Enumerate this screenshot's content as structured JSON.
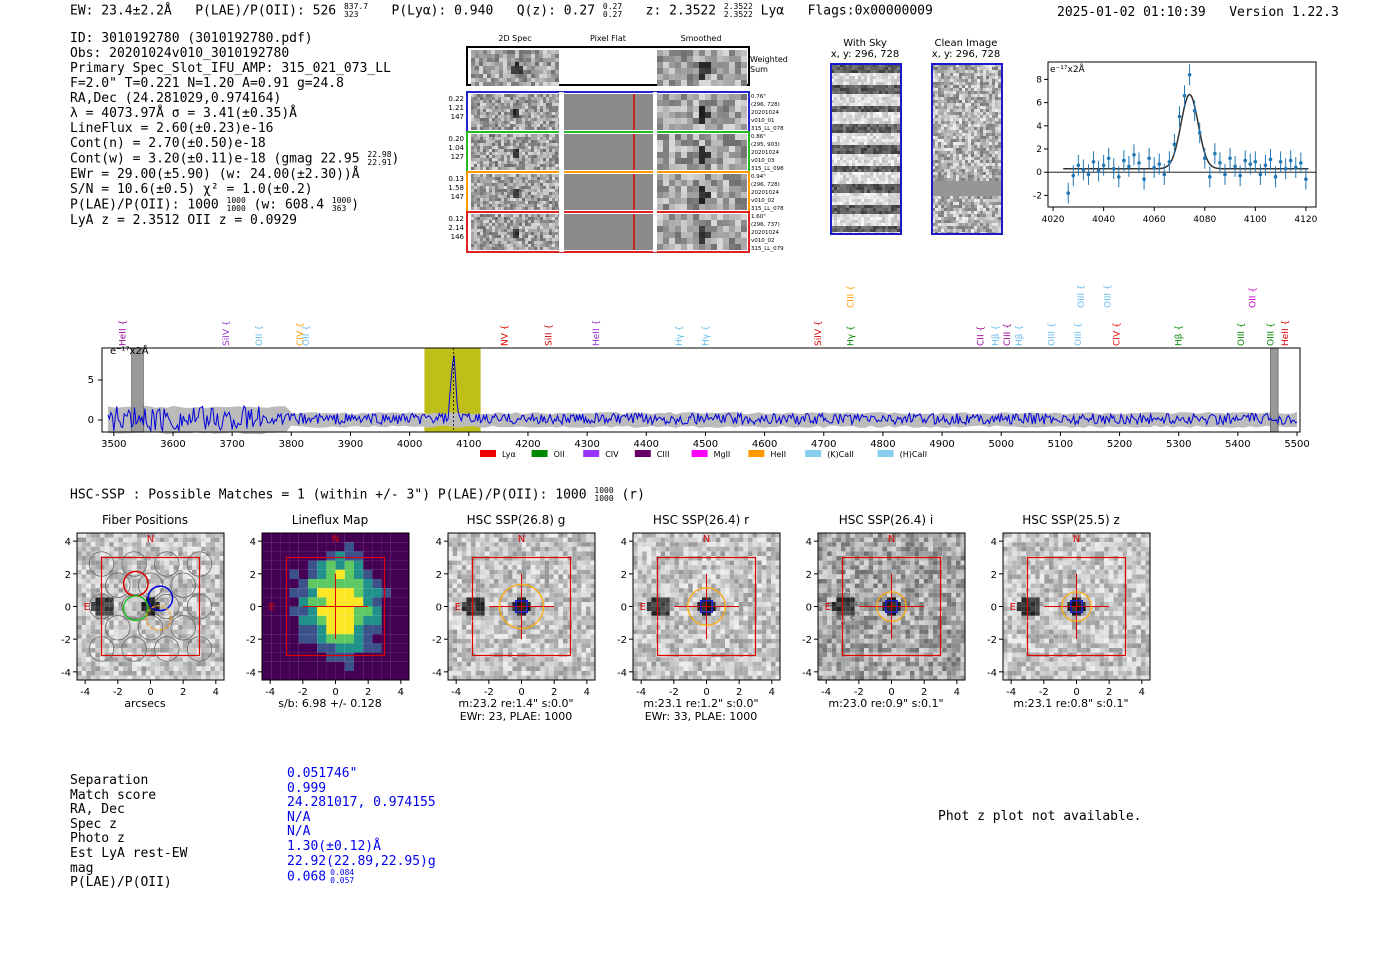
{
  "header": {
    "ew": "EW: 23.4±2.2Å",
    "plae": "P(LAE)/P(OII): 526",
    "plae_hi": "837.7",
    "plae_lo": "323",
    "plya": "P(Lyα): 0.940",
    "qz": "Q(z): 0.27",
    "qz_hi": "0.27",
    "qz_lo": "0.27",
    "z": "z: 2.3522",
    "z_hi": "2.3522",
    "z_lo": "2.3522",
    "line": "Lyα",
    "flags": "Flags:0x00000009",
    "datetime": "2025-01-02 01:10:39",
    "version": "Version 1.22.3"
  },
  "info": {
    "id": "ID: 3010192780 (3010192780.pdf)",
    "obs": "Obs: 20201024v010_3010192780",
    "primary": "Primary Spec_Slot_IFU_AMP: 315_021_073_LL",
    "fparams": "F=2.0\"  T=0.221  N=1.20  A=0.91  g=24.8",
    "radec": "RA,Dec (24.281029,0.974164)",
    "lambda": "λ = 4073.97Å  σ = 3.41(±0.35)Å",
    "lineflux": "LineFlux = 2.60(±0.23)e-16",
    "contn": "Cont(n) = 2.70(±0.50)e-18",
    "contw": "Cont(w) = 3.20(±0.11)e-18 (gmag 22.95",
    "contw_hi": "22.98",
    "contw_lo": "22.91",
    "ewr": "EWr = 29.00(±5.90) (w: 24.00(±2.30))Å",
    "sn": "S/N = 10.6(±0.5)  χ² = 1.0(±0.2)",
    "plae2": "P(LAE)/P(OII): 1000",
    "plae2_hi": "1000",
    "plae2_lo": "1000",
    "plae2_w": "(w: 608.4",
    "plae2_w_hi": "1000",
    "plae2_w_lo": "363",
    "lyaz": "LyA z = 2.3512  OII z = 0.0929"
  },
  "cutouts": {
    "headers": [
      "2D Spec",
      "Pixel Flat",
      "Smoothed"
    ],
    "weighted": "Weighted Sum",
    "rows": [
      {
        "left": [
          "0.22",
          "1.21",
          "147"
        ],
        "right": [
          "0.76\"",
          "(296, 728)",
          "20201024",
          "v010_01",
          "315_LL_078"
        ],
        "color": "#2222cc"
      },
      {
        "left": [
          "0.20",
          "1.04",
          "127"
        ],
        "right": [
          "0.86\"",
          "(295, 903)",
          "20201024",
          "v010_03",
          "315_LL_098"
        ],
        "color": "#22bb22"
      },
      {
        "left": [
          "0.13",
          "1.58",
          "147"
        ],
        "right": [
          "0.94\"",
          "(296, 728)",
          "20201024",
          "v010_02",
          "315_LL_078"
        ],
        "color": "#ff9900"
      },
      {
        "left": [
          "0.12",
          "2.14",
          "146"
        ],
        "right": [
          "1.60\"",
          "(296, 737)",
          "20201024",
          "v010_02",
          "315_LL_079"
        ],
        "color": "#dd2222"
      }
    ]
  },
  "sky": {
    "with_sky": "With Sky",
    "with_sky_xy": "x, y: 296, 728",
    "clean": "Clean Image",
    "clean_xy": "x, y: 296, 728"
  },
  "zoom_chart": {
    "unit": "e⁻¹⁷x2Å",
    "xticks": [
      "4020",
      "4040",
      "4060",
      "4080",
      "4100",
      "4120"
    ],
    "yticks": [
      "-2",
      "0",
      "2",
      "4",
      "6",
      "8"
    ]
  },
  "chart_data": [
    {
      "type": "scatter",
      "title": "",
      "xlabel": "",
      "ylabel": "e-17 x2Å",
      "xlim": [
        4018,
        4124
      ],
      "ylim": [
        -3,
        9.5
      ],
      "x": [
        4026,
        4028,
        4030,
        4032,
        4034,
        4036,
        4038,
        4040,
        4042,
        4044,
        4046,
        4048,
        4050,
        4052,
        4054,
        4056,
        4058,
        4060,
        4062,
        4064,
        4066,
        4068,
        4070,
        4072,
        4074,
        4076,
        4078,
        4080,
        4082,
        4084,
        4086,
        4088,
        4090,
        4092,
        4094,
        4096,
        4098,
        4100,
        4102,
        4104,
        4106,
        4108,
        4110,
        4112,
        4114,
        4116,
        4118,
        4120
      ],
      "y": [
        -1.8,
        -0.3,
        0.6,
        0.2,
        -0.2,
        0.9,
        0.1,
        0.6,
        1.2,
        0.3,
        -0.4,
        1.0,
        0.5,
        1.5,
        0.8,
        -0.6,
        1.2,
        0.4,
        0.7,
        -0.2,
        0.9,
        2.4,
        4.8,
        6.6,
        8.4,
        5.3,
        3.4,
        1.2,
        -0.4,
        1.6,
        0.8,
        -0.2,
        1.2,
        0.5,
        -0.3,
        1.0,
        0.7,
        0.9,
        -0.2,
        0.6,
        1.1,
        -0.4,
        0.9,
        0.3,
        1.0,
        0.4,
        0.8,
        -0.6
      ],
      "model_center": 4074,
      "model_sigma": 3.4,
      "model_amp": 6.4,
      "model_cont": 0.3
    },
    {
      "type": "line",
      "title": "",
      "xlabel": "",
      "ylabel": "e-17 x2Å",
      "xlim": [
        3480,
        5505
      ],
      "ylim": [
        -1.5,
        9
      ],
      "xticks": [
        "3500",
        "3600",
        "3700",
        "3800",
        "3900",
        "4000",
        "4100",
        "4200",
        "4300",
        "4400",
        "4500",
        "4600",
        "4700",
        "4800",
        "4900",
        "5000",
        "5100",
        "5200",
        "5300",
        "5400",
        "5500"
      ],
      "yticks": [
        "0",
        "5"
      ],
      "highlight_range": [
        4025,
        4120
      ],
      "peak": 4074,
      "line_markers": [
        {
          "label": "HeII",
          "wave": 3515,
          "color": "#990099",
          "row": 1
        },
        {
          "label": "SiIV",
          "wave": 3690,
          "color": "#9933cc",
          "row": 1
        },
        {
          "label": "OII",
          "wave": 3745,
          "color": "#66bbee",
          "row": 1
        },
        {
          "label": "CIV",
          "wave": 3815,
          "color": "#ff9900",
          "row": 1
        },
        {
          "label": "OII",
          "wave": 3825,
          "color": "#66bbee",
          "row": 1
        },
        {
          "label": "NV",
          "wave": 4160,
          "color": "#dd0000",
          "row": 1
        },
        {
          "label": "SiII",
          "wave": 4235,
          "color": "#cc0000",
          "row": 1
        },
        {
          "label": "HeII",
          "wave": 4315,
          "color": "#9933cc",
          "row": 1
        },
        {
          "label": "Hγ",
          "wave": 4455,
          "color": "#66bbee",
          "row": 1
        },
        {
          "label": "Hγ",
          "wave": 4500,
          "color": "#66bbee",
          "row": 1
        },
        {
          "label": "SiIV",
          "wave": 4690,
          "color": "#dd0000",
          "row": 1
        },
        {
          "label": "CIII",
          "wave": 4745,
          "color": "#ff9900",
          "row": 0
        },
        {
          "label": "Hγ",
          "wave": 4745,
          "color": "#008800",
          "row": 1
        },
        {
          "label": "CII",
          "wave": 4965,
          "color": "#990099",
          "row": 1
        },
        {
          "label": "Hβ",
          "wave": 4990,
          "color": "#66bbee",
          "row": 1
        },
        {
          "label": "CIII",
          "wave": 5010,
          "color": "#990099",
          "row": 1
        },
        {
          "label": "Hβ",
          "wave": 5030,
          "color": "#66bbee",
          "row": 1
        },
        {
          "label": "OIII",
          "wave": 5085,
          "color": "#66bbee",
          "row": 1
        },
        {
          "label": "OIII",
          "wave": 5135,
          "color": "#66bbee",
          "row": 0
        },
        {
          "label": "OIII",
          "wave": 5180,
          "color": "#66bbee",
          "row": 0
        },
        {
          "label": "OIII",
          "wave": 5130,
          "color": "#66bbee",
          "row": 1
        },
        {
          "label": "CIV",
          "wave": 5195,
          "color": "#dd0000",
          "row": 1
        },
        {
          "label": "Hβ",
          "wave": 5300,
          "color": "#008800",
          "row": 1
        },
        {
          "label": "OII",
          "wave": 5425,
          "color": "#cc00cc",
          "row": 0
        },
        {
          "label": "OIII",
          "wave": 5405,
          "color": "#008800",
          "row": 1
        },
        {
          "label": "OIII",
          "wave": 5455,
          "color": "#008800",
          "row": 1
        },
        {
          "label": "HeII",
          "wave": 5480,
          "color": "#dd0000",
          "row": 1
        }
      ],
      "legend": [
        {
          "name": "Lyα",
          "color": "#ee0000"
        },
        {
          "name": "OII",
          "color": "#008800"
        },
        {
          "name": "CIV",
          "color": "#9933ff"
        },
        {
          "name": "CIII",
          "color": "#660066"
        },
        {
          "name": "MgII",
          "color": "#ff00ff"
        },
        {
          "name": "HeII",
          "color": "#ff9900"
        },
        {
          "name": "(K)CaII",
          "color": "#88ccee"
        },
        {
          "name": "(H)CaII",
          "color": "#88ccee"
        }
      ]
    }
  ],
  "hsc": {
    "header": "HSC-SSP : Possible Matches = 1 (within +/- 3\")  P(LAE)/P(OII): 1000",
    "header_hi": "1000",
    "header_lo": "1000",
    "header_suffix": "(r)",
    "ticks": [
      "-4",
      "-2",
      "0",
      "2",
      "4"
    ],
    "panels": [
      {
        "title": "Fiber Positions",
        "caption1": "arcsecs",
        "caption2": "",
        "kind": "fiber"
      },
      {
        "title": "Lineflux Map",
        "caption1": "s/b: 6.98 +/- 0.128",
        "caption2": "",
        "kind": "flux"
      },
      {
        "title": "HSC SSP(26.8) g",
        "caption1": "m:23.2  re:1.4\"  s:0.0\"",
        "caption2": "EWr: 23, PLAE: 1000",
        "kind": "img"
      },
      {
        "title": "HSC SSP(26.4) r",
        "caption1": "m:23.1  re:1.2\"  s:0.0\"",
        "caption2": "EWr: 33, PLAE: 1000",
        "kind": "img"
      },
      {
        "title": "HSC SSP(26.4) i",
        "caption1": "m:23.0  re:0.9\"  s:0.1\"",
        "caption2": "",
        "kind": "img"
      },
      {
        "title": "HSC SSP(25.5) z",
        "caption1": "m:23.1  re:0.8\"  s:0.1\"",
        "caption2": "",
        "kind": "img"
      }
    ],
    "compass_n": "N",
    "compass_e": "E"
  },
  "match": {
    "labels": [
      "Separation",
      "Match score",
      "RA, Dec",
      "Spec z",
      "Photo z",
      "Est LyA rest-EW",
      "mag",
      "P(LAE)/P(OII)"
    ],
    "values": [
      "0.051746\"",
      "0.999",
      "24.281017, 0.974155",
      "N/A",
      "N/A",
      "1.30(±0.12)Å",
      "22.92(22.89,22.95)g",
      "0.068"
    ],
    "plae_hi": "0.084",
    "plae_lo": "0.057",
    "photz_msg": "Phot z plot not available."
  }
}
